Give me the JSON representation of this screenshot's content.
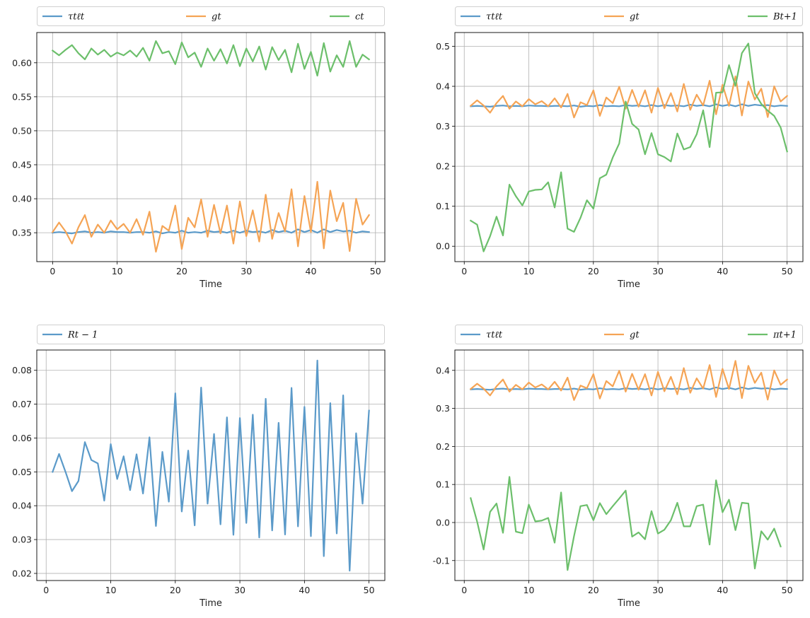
{
  "chart_data": [
    {
      "type": "line",
      "xlabel": "Time",
      "xlim": [
        -2.45,
        51.45
      ],
      "ylim": [
        0.3075,
        0.6445
      ],
      "xticks": [
        0,
        10,
        20,
        30,
        40,
        50
      ],
      "yticks": [
        0.35,
        0.4,
        0.45,
        0.5,
        0.55,
        0.6
      ],
      "ytick_decimals": 2,
      "grid": true,
      "legend": {
        "placement": "top",
        "columns": 3
      },
      "x_start": 0,
      "series": [
        {
          "name": "τtℓt",
          "color": "#5b9ac9",
          "values": [
            0.35,
            0.351,
            0.35,
            0.349,
            0.351,
            0.352,
            0.35,
            0.351,
            0.35,
            0.352,
            0.351,
            0.351,
            0.35,
            0.351,
            0.351,
            0.35,
            0.352,
            0.349,
            0.351,
            0.35,
            0.353,
            0.35,
            0.351,
            0.35,
            0.353,
            0.351,
            0.352,
            0.35,
            0.353,
            0.35,
            0.353,
            0.351,
            0.352,
            0.35,
            0.354,
            0.351,
            0.353,
            0.35,
            0.355,
            0.351,
            0.354,
            0.35,
            0.355,
            0.351,
            0.354,
            0.352,
            0.353,
            0.35,
            0.352,
            0.351
          ]
        },
        {
          "name": "gt",
          "color": "#f5a455",
          "values": [
            0.351,
            0.365,
            0.352,
            0.334,
            0.358,
            0.376,
            0.344,
            0.362,
            0.35,
            0.368,
            0.355,
            0.363,
            0.35,
            0.37,
            0.347,
            0.381,
            0.322,
            0.36,
            0.353,
            0.39,
            0.326,
            0.372,
            0.358,
            0.399,
            0.344,
            0.391,
            0.349,
            0.39,
            0.334,
            0.396,
            0.345,
            0.383,
            0.337,
            0.406,
            0.341,
            0.379,
            0.352,
            0.414,
            0.33,
            0.404,
            0.351,
            0.425,
            0.327,
            0.412,
            0.367,
            0.394,
            0.323,
            0.4,
            0.362,
            0.376
          ]
        },
        {
          "name": "ct",
          "color": "#6cbf6b",
          "values": [
            0.618,
            0.611,
            0.619,
            0.626,
            0.614,
            0.605,
            0.621,
            0.612,
            0.619,
            0.609,
            0.615,
            0.611,
            0.618,
            0.609,
            0.622,
            0.603,
            0.632,
            0.614,
            0.617,
            0.598,
            0.63,
            0.608,
            0.615,
            0.594,
            0.621,
            0.603,
            0.62,
            0.599,
            0.626,
            0.595,
            0.621,
            0.602,
            0.624,
            0.59,
            0.623,
            0.604,
            0.619,
            0.586,
            0.628,
            0.591,
            0.616,
            0.581,
            0.629,
            0.587,
            0.611,
            0.594,
            0.632,
            0.594,
            0.612,
            0.605
          ]
        }
      ]
    },
    {
      "type": "line",
      "xlabel": "Time",
      "xlim": [
        -1.45,
        52.45
      ],
      "ylim": [
        -0.0385,
        0.5345
      ],
      "xticks": [
        0,
        10,
        20,
        30,
        40,
        50
      ],
      "yticks": [
        0.0,
        0.1,
        0.2,
        0.3,
        0.4,
        0.5
      ],
      "ytick_decimals": 1,
      "grid": true,
      "legend": {
        "placement": "top",
        "columns": 3
      },
      "x_start": 1,
      "series": [
        {
          "name": "τtℓt",
          "color": "#5b9ac9",
          "values": [
            0.35,
            0.351,
            0.35,
            0.349,
            0.351,
            0.352,
            0.35,
            0.351,
            0.35,
            0.352,
            0.351,
            0.351,
            0.35,
            0.351,
            0.351,
            0.35,
            0.352,
            0.349,
            0.351,
            0.35,
            0.353,
            0.35,
            0.351,
            0.35,
            0.353,
            0.351,
            0.352,
            0.35,
            0.353,
            0.35,
            0.353,
            0.351,
            0.352,
            0.35,
            0.354,
            0.351,
            0.353,
            0.35,
            0.355,
            0.351,
            0.354,
            0.35,
            0.355,
            0.351,
            0.354,
            0.352,
            0.353,
            0.35,
            0.352,
            0.351
          ]
        },
        {
          "name": "gt",
          "color": "#f5a455",
          "values": [
            0.351,
            0.365,
            0.352,
            0.334,
            0.358,
            0.376,
            0.344,
            0.362,
            0.35,
            0.368,
            0.355,
            0.363,
            0.35,
            0.37,
            0.347,
            0.381,
            0.322,
            0.36,
            0.353,
            0.39,
            0.326,
            0.372,
            0.358,
            0.399,
            0.344,
            0.391,
            0.349,
            0.39,
            0.334,
            0.396,
            0.345,
            0.383,
            0.337,
            0.406,
            0.341,
            0.379,
            0.352,
            0.414,
            0.33,
            0.404,
            0.351,
            0.425,
            0.327,
            0.412,
            0.367,
            0.394,
            0.323,
            0.4,
            0.362,
            0.376
          ]
        },
        {
          "name": "Bt+1",
          "color": "#6cbf6b",
          "values": [
            0.064,
            0.054,
            -0.013,
            0.025,
            0.074,
            0.027,
            0.154,
            0.125,
            0.102,
            0.137,
            0.141,
            0.142,
            0.16,
            0.097,
            0.185,
            0.044,
            0.036,
            0.071,
            0.115,
            0.094,
            0.17,
            0.179,
            0.222,
            0.257,
            0.362,
            0.306,
            0.292,
            0.23,
            0.283,
            0.23,
            0.223,
            0.212,
            0.282,
            0.242,
            0.248,
            0.28,
            0.34,
            0.248,
            0.384,
            0.385,
            0.453,
            0.401,
            0.483,
            0.507,
            0.383,
            0.356,
            0.339,
            0.326,
            0.297,
            0.237
          ]
        }
      ]
    },
    {
      "type": "line",
      "xlabel": "Time",
      "xlim": [
        -1.45,
        52.45
      ],
      "ylim": [
        0.0179,
        0.086
      ],
      "xticks": [
        0,
        10,
        20,
        30,
        40,
        50
      ],
      "yticks": [
        0.02,
        0.03,
        0.04,
        0.05,
        0.06,
        0.07,
        0.08
      ],
      "ytick_decimals": 2,
      "grid": true,
      "legend": {
        "placement": "top",
        "columns": 1
      },
      "x_start": 1,
      "series": [
        {
          "name": "Rt − 1",
          "color": "#5b9ac9",
          "values": [
            0.05,
            0.0553,
            0.05,
            0.0443,
            0.0473,
            0.0588,
            0.0535,
            0.0525,
            0.0415,
            0.0582,
            0.0479,
            0.0546,
            0.0446,
            0.0552,
            0.0436,
            0.0602,
            0.034,
            0.0559,
            0.0412,
            0.0732,
            0.0383,
            0.0563,
            0.0342,
            0.0749,
            0.0406,
            0.0612,
            0.0345,
            0.0661,
            0.0314,
            0.0659,
            0.0349,
            0.0669,
            0.0306,
            0.0716,
            0.0327,
            0.0645,
            0.0315,
            0.0748,
            0.0339,
            0.0692,
            0.031,
            0.0829,
            0.0251,
            0.0703,
            0.0318,
            0.0726,
            0.0208,
            0.0614,
            0.0406,
            0.0681
          ]
        }
      ]
    },
    {
      "type": "line",
      "xlabel": "Time",
      "xlim": [
        -1.45,
        52.45
      ],
      "ylim": [
        -0.1525,
        0.4535
      ],
      "xticks": [
        0,
        10,
        20,
        30,
        40,
        50
      ],
      "yticks": [
        -0.1,
        0.0,
        0.1,
        0.2,
        0.3,
        0.4
      ],
      "ytick_decimals": 1,
      "grid": true,
      "legend": {
        "placement": "top",
        "columns": 3
      },
      "x_start": 1,
      "series": [
        {
          "name": "τtℓt",
          "color": "#5b9ac9",
          "values": [
            0.35,
            0.351,
            0.35,
            0.349,
            0.351,
            0.352,
            0.35,
            0.351,
            0.35,
            0.352,
            0.351,
            0.351,
            0.35,
            0.351,
            0.351,
            0.35,
            0.352,
            0.349,
            0.351,
            0.35,
            0.353,
            0.35,
            0.351,
            0.35,
            0.353,
            0.351,
            0.352,
            0.35,
            0.353,
            0.35,
            0.353,
            0.351,
            0.352,
            0.35,
            0.354,
            0.351,
            0.353,
            0.35,
            0.355,
            0.351,
            0.354,
            0.35,
            0.355,
            0.351,
            0.354,
            0.352,
            0.353,
            0.35,
            0.352,
            0.351
          ]
        },
        {
          "name": "gt",
          "color": "#f5a455",
          "values": [
            0.351,
            0.365,
            0.352,
            0.334,
            0.358,
            0.376,
            0.344,
            0.362,
            0.35,
            0.368,
            0.355,
            0.363,
            0.35,
            0.37,
            0.347,
            0.381,
            0.322,
            0.36,
            0.353,
            0.39,
            0.326,
            0.372,
            0.358,
            0.399,
            0.344,
            0.391,
            0.349,
            0.39,
            0.334,
            0.396,
            0.345,
            0.383,
            0.337,
            0.406,
            0.341,
            0.379,
            0.352,
            0.414,
            0.33,
            0.404,
            0.351,
            0.425,
            0.327,
            0.412,
            0.367,
            0.394,
            0.323,
            0.4,
            0.362,
            0.376
          ]
        },
        {
          "name": "πt+1",
          "color": "#6cbf6b",
          "values": [
            0.064,
            0.002,
            -0.071,
            0.028,
            0.05,
            -0.027,
            0.12,
            -0.024,
            -0.028,
            0.047,
            0.003,
            0.005,
            0.012,
            -0.053,
            0.079,
            -0.125,
            -0.036,
            0.043,
            0.046,
            0.006,
            0.051,
            0.022,
            0.043,
            0.063,
            0.084,
            -0.037,
            -0.026,
            -0.044,
            0.03,
            -0.029,
            -0.019,
            0.006,
            0.052,
            -0.01,
            -0.01,
            0.043,
            0.047,
            -0.058,
            0.111,
            0.027,
            0.06,
            -0.02,
            0.052,
            0.05,
            -0.121,
            -0.023,
            -0.045,
            -0.016,
            -0.063
          ]
        }
      ]
    }
  ]
}
